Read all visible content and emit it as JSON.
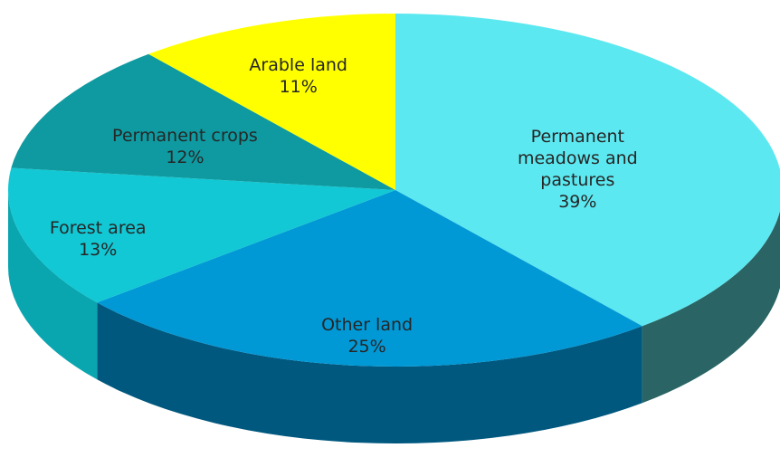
{
  "chart_data": {
    "type": "pie",
    "categories": [
      "Permanent meadows and pastures",
      "Other land",
      "Forest area",
      "Permanent crops",
      "Arable land"
    ],
    "values": [
      39,
      25,
      13,
      12,
      11
    ],
    "value_labels": [
      "39%",
      "25%",
      "13%",
      "12%",
      "11%"
    ],
    "colors": [
      "#5ce8f0",
      "#0099d6",
      "#12c8d4",
      "#0e9aa0",
      "#ffff00"
    ],
    "side_colors": [
      "#2a6464",
      "#00587f",
      "#0aa6b0",
      "#087076",
      "#b0b000"
    ]
  }
}
